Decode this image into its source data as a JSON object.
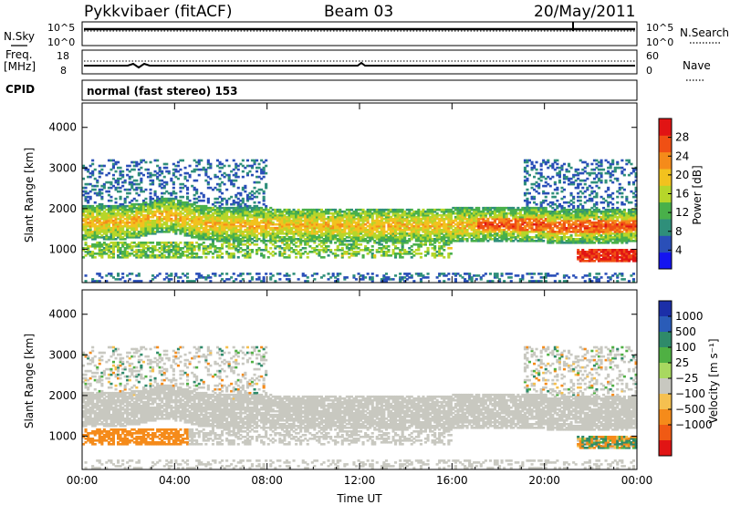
{
  "header": {
    "station": "Pykkvibaer (fitACF)",
    "beam": "Beam 03",
    "date": "20/May/2011"
  },
  "strips": {
    "nsky": {
      "label": "N.Sky",
      "ticks": [
        "10^5",
        "10^0"
      ]
    },
    "nsearch": {
      "label": "N.Search",
      "ticks": [
        "10^5",
        "10^0"
      ]
    },
    "freq": {
      "label_line1": "Freq.",
      "label_line2": "[MHz]",
      "ticks": [
        "18",
        "8"
      ]
    },
    "nave": {
      "label": "Nave",
      "ticks": [
        "60",
        "0"
      ]
    },
    "cpid": {
      "label": "CPID",
      "value": "normal (fast stereo) 153"
    }
  },
  "chart_data": [
    {
      "type": "heatmap",
      "name": "power-panel",
      "ylabel": "Slant Range [km]",
      "xlabel": "",
      "y_ticks": [
        "1000",
        "2000",
        "3000",
        "4000"
      ],
      "y_values": [
        1000,
        2000,
        3000,
        4000
      ],
      "ylim": [
        180,
        4600
      ],
      "x_ticks": [
        "00:00",
        "04:00",
        "08:00",
        "12:00",
        "16:00",
        "20:00",
        "00:00"
      ],
      "x_hours": [
        0,
        4,
        8,
        12,
        16,
        20,
        24
      ],
      "colorbar": {
        "label": "Power [dB]",
        "ticks": [
          "4",
          "8",
          "12",
          "16",
          "20",
          "24",
          "28"
        ],
        "tick_values": [
          4,
          8,
          12,
          16,
          20,
          24,
          28
        ],
        "range": [
          0,
          32
        ],
        "colors": [
          "#1414f0",
          "#2a4fb8",
          "#2f8f7a",
          "#49b04a",
          "#b6d62a",
          "#f2c21e",
          "#f58b1a",
          "#f05014",
          "#e11414"
        ]
      },
      "features": [
        {
          "desc": "main F-region band",
          "hours": [
            0,
            24
          ],
          "range_km": [
            1400,
            2000
          ],
          "power_db": 20
        },
        {
          "desc": "lower band",
          "hours": [
            0,
            16
          ],
          "range_km": [
            700,
            1100
          ],
          "power_db": 14
        },
        {
          "desc": "strong late echoes",
          "hours": [
            21.5,
            24
          ],
          "range_km": [
            650,
            1000
          ],
          "power_db": 28
        }
      ]
    },
    {
      "type": "heatmap",
      "name": "velocity-panel",
      "ylabel": "Slant Range [km]",
      "xlabel": "Time UT",
      "y_ticks": [
        "1000",
        "2000",
        "3000",
        "4000"
      ],
      "y_values": [
        1000,
        2000,
        3000,
        4000
      ],
      "ylim": [
        180,
        4600
      ],
      "x_ticks": [
        "00:00",
        "04:00",
        "08:00",
        "12:00",
        "16:00",
        "20:00",
        "00:00"
      ],
      "x_hours": [
        0,
        4,
        8,
        12,
        16,
        20,
        24
      ],
      "colorbar": {
        "label": "Velocity [m s⁻¹]",
        "ticks": [
          "1000",
          "500",
          "100",
          "25",
          "−25",
          "−100",
          "−500",
          "−1000"
        ],
        "tick_values": [
          1000,
          500,
          100,
          25,
          -25,
          -100,
          -500,
          -1000
        ],
        "colors": [
          "#1b2fa8",
          "#2a5cb8",
          "#2f8a6a",
          "#4fb043",
          "#a8d860",
          "#c8c8c0",
          "#f5c050",
          "#f58b1a",
          "#f05a14",
          "#e11414"
        ]
      },
      "features": [
        {
          "desc": "ground scatter (grey)",
          "hours": [
            0,
            24
          ],
          "range_km": [
            1300,
            2700
          ],
          "velocity_ms": 0
        },
        {
          "desc": "negative velocity patch",
          "hours": [
            0,
            4.5
          ],
          "range_km": [
            800,
            1400
          ],
          "velocity_ms": -200
        },
        {
          "desc": "late mixed velocities",
          "hours": [
            21.5,
            24
          ],
          "range_km": [
            650,
            1000
          ],
          "velocity_ms": -150
        }
      ]
    }
  ]
}
